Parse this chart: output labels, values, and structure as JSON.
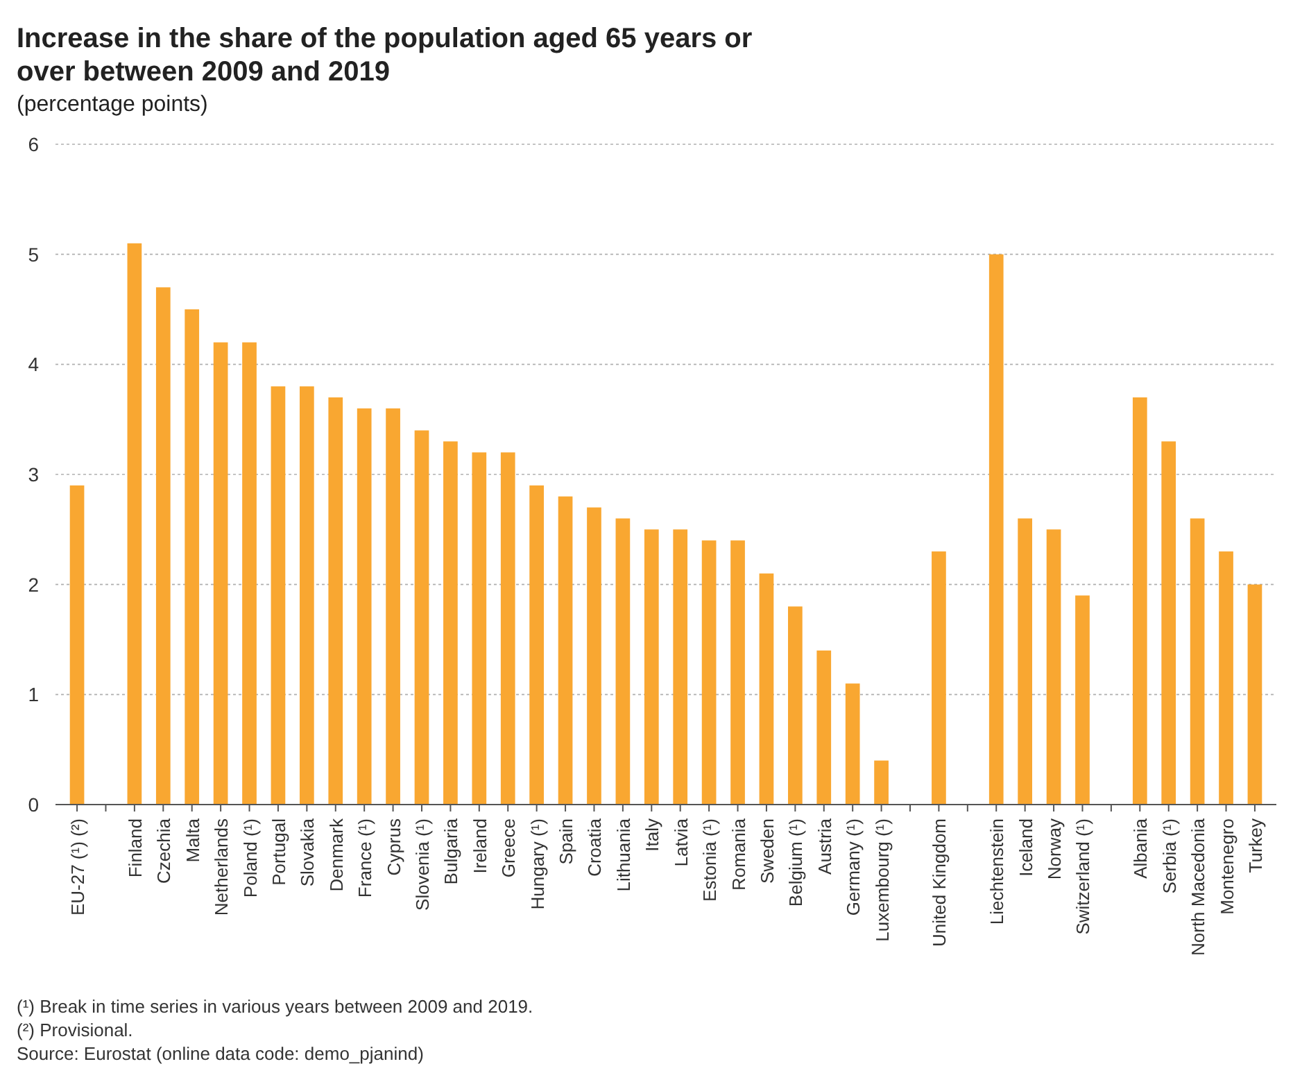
{
  "chart_data": {
    "type": "bar",
    "title": "Increase in the share of the population aged 65 years or over between 2009 and 2019",
    "subtitle": "(percentage points)",
    "categories": [
      "EU-27 (¹) (²)",
      null,
      "Finland",
      "Czechia",
      "Malta",
      "Netherlands",
      "Poland (¹)",
      "Portugal",
      "Slovakia",
      "Denmark",
      "France (¹)",
      "Cyprus",
      "Slovenia (¹)",
      "Bulgaria",
      "Ireland",
      "Greece",
      "Hungary (¹)",
      "Spain",
      "Croatia",
      "Lithuania",
      "Italy",
      "Latvia",
      "Estonia (¹)",
      "Romania",
      "Sweden",
      "Belgium (¹)",
      "Austria",
      "Germany (¹)",
      "Luxembourg (¹)",
      null,
      "United Kingdom",
      null,
      "Liechtenstein",
      "Iceland",
      "Norway",
      "Switzerland (¹)",
      null,
      "Albania",
      "Serbia (¹)",
      "North Macedonia",
      "Montenegro",
      "Turkey"
    ],
    "values": [
      2.9,
      null,
      5.1,
      4.7,
      4.5,
      4.2,
      4.2,
      3.8,
      3.8,
      3.7,
      3.6,
      3.6,
      3.4,
      3.3,
      3.2,
      3.2,
      2.9,
      2.8,
      2.7,
      2.6,
      2.5,
      2.5,
      2.4,
      2.4,
      2.1,
      1.8,
      1.4,
      1.1,
      0.4,
      null,
      2.3,
      null,
      5.0,
      2.6,
      2.5,
      1.9,
      null,
      3.7,
      3.3,
      2.6,
      2.3,
      2.0
    ],
    "color": "#f9a731",
    "ylim": [
      0,
      6
    ],
    "yticks": [
      0,
      1,
      2,
      3,
      4,
      5,
      6
    ],
    "grid": "y",
    "annotations": [
      "(¹) Break in time series in various years between 2009 and 2019.",
      "(²) Provisional.",
      "Source: Eurostat (online data code: demo_pjanind)"
    ]
  }
}
